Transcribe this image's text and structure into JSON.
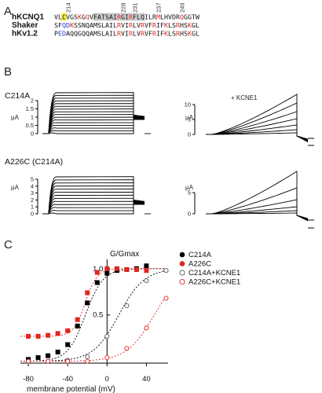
{
  "panels": {
    "A": "A",
    "B": "B",
    "C": "C"
  },
  "panel_a": {
    "positions": [
      "214",
      "228",
      "231",
      "237",
      "249"
    ],
    "rows": [
      {
        "name": "hKCNQ1",
        "sequence": "VLCVGSKGQVFATSAIRGIRFLQILRMLHVDRQGGTW",
        "red": [
          6,
          8,
          16,
          19,
          26,
          32
        ],
        "blue": [],
        "yellow": [
          2
        ],
        "gray": [
          10,
          11,
          12,
          13,
          14,
          15,
          16,
          17,
          18,
          19,
          20,
          21,
          22
        ]
      },
      {
        "name": "Shaker",
        "sequence": "SFQDKSSNQAMSLAILRVIRLVRVFRIFKLSRHSKGL",
        "red": [
          4,
          16,
          19,
          22,
          25,
          28,
          31,
          34
        ],
        "blue": [
          2,
          3
        ],
        "yellow": [],
        "gray": []
      },
      {
        "name": "hKv1.2",
        "sequence": "PEDAQQGQQAMSLAILRVIRLVRVFRIFKLSRHSKGL",
        "red": [
          16,
          19,
          22,
          25,
          28,
          31,
          34
        ],
        "blue": [
          1,
          2
        ],
        "yellow": [],
        "gray": []
      }
    ]
  },
  "panel_b": {
    "row1_label": "C214A",
    "row2_label": "A226C (C214A)",
    "kcne1_label": "+ KCNE1",
    "unit": "μA",
    "row1_left_ticks": [
      "2",
      "1.5",
      "1",
      "0.5",
      "0"
    ],
    "row1_right_ticks": [
      "10",
      "5",
      "0"
    ],
    "row2_left_ticks": [
      "5",
      "4",
      "3",
      "2",
      "1",
      "0"
    ],
    "row2_right_ticks": [
      "5",
      "0"
    ]
  },
  "chart_data": {
    "type": "scatter",
    "ylabel": "G/Gmax",
    "xlabel": "membrane potential (mV)",
    "xlim": [
      -80,
      60
    ],
    "ylim": [
      0,
      1.1
    ],
    "x_ticks": [
      -80,
      -40,
      0,
      40
    ],
    "y_ticks": [
      0.5,
      1.0
    ],
    "grid": false,
    "legend_position": "top-right",
    "series": [
      {
        "name": "C214A",
        "color": "#000000",
        "filled": true,
        "x": [
          -80,
          -70,
          -60,
          -50,
          -40,
          -30,
          -20,
          -10,
          0,
          10,
          20,
          30,
          40
        ],
        "y": [
          0.02,
          0.04,
          0.06,
          0.1,
          0.18,
          0.38,
          0.63,
          0.85,
          0.95,
          0.98,
          0.99,
          1.0,
          1.03
        ]
      },
      {
        "name": "A226C",
        "color": "#e0261f",
        "filled": true,
        "x": [
          -80,
          -70,
          -60,
          -50,
          -40,
          -30,
          -20,
          -10,
          0,
          10,
          20,
          30,
          40
        ],
        "y": [
          0.27,
          0.27,
          0.28,
          0.3,
          0.33,
          0.45,
          0.74,
          0.96,
          1.0,
          1.0,
          0.99,
          0.99,
          0.98
        ]
      },
      {
        "name": "C214A+KCNE1",
        "color": "#555555",
        "filled": false,
        "x": [
          -80,
          -60,
          -40,
          -20,
          0,
          20,
          40,
          60
        ],
        "y": [
          0.0,
          0.0,
          0.01,
          0.05,
          0.27,
          0.6,
          0.87,
          0.98
        ]
      },
      {
        "name": "A226C+KCNE1",
        "color": "#e0261f",
        "filled": false,
        "x": [
          -80,
          -60,
          -40,
          -20,
          0,
          20,
          40,
          60
        ],
        "y": [
          0.0,
          0.0,
          0.0,
          0.0,
          0.04,
          0.14,
          0.36,
          0.68
        ]
      }
    ]
  }
}
